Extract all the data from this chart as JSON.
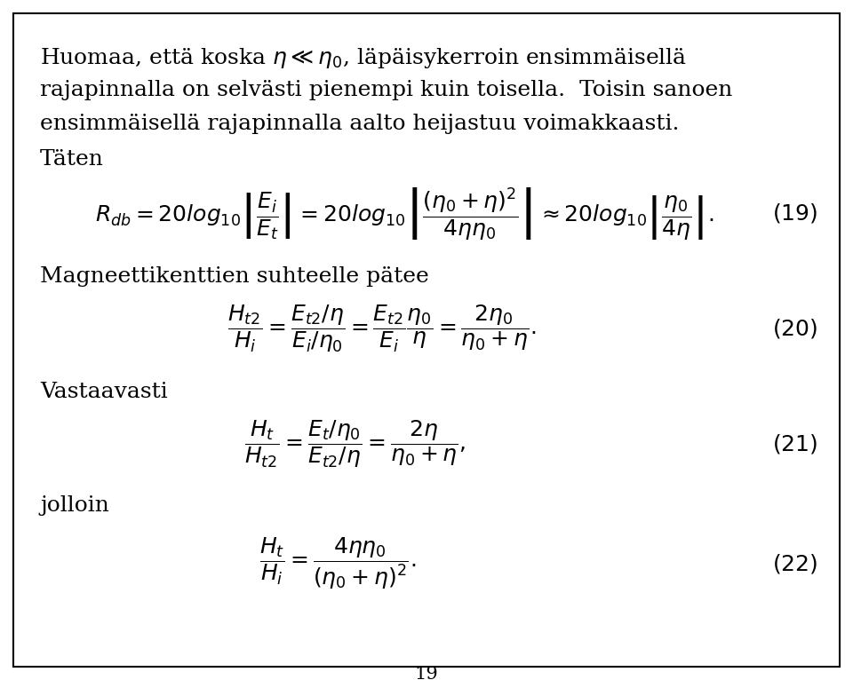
{
  "background_color": "#ffffff",
  "border_color": "#000000",
  "page_number": "19",
  "text_color": "#000000",
  "fontsize_text": 18,
  "fontsize_eq": 18,
  "fontsize_page": 15,
  "line1": "Huomaa, että koska $\\eta \\ll \\eta_0$, läpäisykerroin ensimmäisellä",
  "line2": "rajapinnalla on selvästi pienempi kuin toisella.  Toisin sanoen",
  "line3": "ensimmäisellä rajapinnalla aalto heijastuu voimakkaasti.",
  "label_taten": "Täten",
  "label_mag": "Magneettikenttien suhteelle pätee",
  "label_vast": "Vastaavasti",
  "label_jolloin": "jolloin"
}
